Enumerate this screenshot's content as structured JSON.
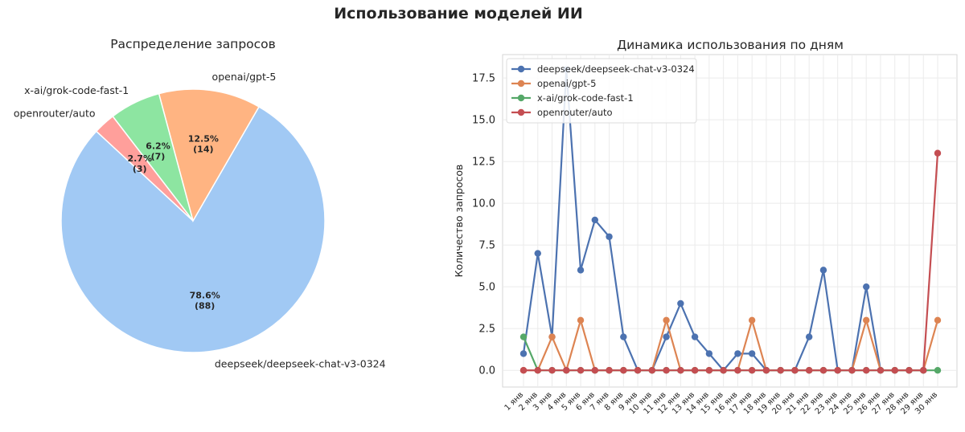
{
  "figure": {
    "suptitle": "Использование моделей ИИ"
  },
  "chart_data": [
    {
      "type": "pie",
      "title": "Распределение запросов",
      "slices": [
        {
          "label": "deepseek/deepseek-chat-v3-0324",
          "value": 88,
          "pct": "78.6%",
          "count": "(88)",
          "color": "#a1c9f4"
        },
        {
          "label": "openai/gpt-5",
          "value": 14,
          "pct": "12.5%",
          "count": "(14)",
          "color": "#ffb482"
        },
        {
          "label": "x-ai/grok-code-fast-1",
          "value": 7,
          "pct": "6.2%",
          "count": "(7)",
          "color": "#8de5a1"
        },
        {
          "label": "openrouter/auto",
          "value": 3,
          "pct": "2.7%",
          "count": "(3)",
          "color": "#ff9f9b"
        }
      ]
    },
    {
      "type": "line",
      "title": "Динамика использования по дням",
      "xlabel": "",
      "ylabel": "Количество запросов",
      "ylim": [
        -1.0,
        18.9
      ],
      "yticks": [
        "0.0",
        "2.5",
        "5.0",
        "7.5",
        "10.0",
        "12.5",
        "15.0",
        "17.5"
      ],
      "grid": true,
      "legend": "top-left",
      "categories": [
        "1 янв",
        "2 янв",
        "3 янв",
        "4 янв",
        "5 янв",
        "6 янв",
        "7 янв",
        "8 янв",
        "9 янв",
        "10 янв",
        "11 янв",
        "12 янв",
        "13 янв",
        "14 янв",
        "15 янв",
        "16 янв",
        "17 янв",
        "18 янв",
        "19 янв",
        "20 янв",
        "21 янв",
        "22 янв",
        "23 янв",
        "24 янв",
        "25 янв",
        "26 янв",
        "27 янв",
        "28 янв",
        "29 янв",
        "30 янв"
      ],
      "series": [
        {
          "name": "deepseek/deepseek-chat-v3-0324",
          "color": "#4c72b0",
          "values": [
            1,
            7,
            2,
            18,
            6,
            9,
            8,
            2,
            0,
            0,
            2,
            4,
            2,
            1,
            0,
            1,
            1,
            0,
            0,
            0,
            2,
            6,
            0,
            0,
            5,
            0,
            0,
            0,
            0,
            null
          ]
        },
        {
          "name": "openai/gpt-5",
          "color": "#dd8452",
          "values": [
            0,
            0,
            2,
            0,
            3,
            0,
            0,
            0,
            0,
            0,
            3,
            0,
            0,
            0,
            0,
            0,
            3,
            0,
            0,
            0,
            0,
            0,
            0,
            0,
            3,
            0,
            0,
            0,
            0,
            3
          ]
        },
        {
          "name": "x-ai/grok-code-fast-1",
          "color": "#55a868",
          "values": [
            2,
            0,
            0,
            0,
            0,
            0,
            0,
            0,
            0,
            0,
            0,
            0,
            0,
            0,
            0,
            0,
            0,
            0,
            0,
            0,
            0,
            0,
            0,
            0,
            0,
            0,
            0,
            0,
            0,
            0
          ]
        },
        {
          "name": "openrouter/auto",
          "color": "#c44e52",
          "values": [
            0,
            0,
            0,
            0,
            0,
            0,
            0,
            0,
            0,
            0,
            0,
            0,
            0,
            0,
            0,
            0,
            0,
            0,
            0,
            0,
            0,
            0,
            0,
            0,
            0,
            0,
            0,
            0,
            0,
            13
          ]
        }
      ]
    }
  ]
}
